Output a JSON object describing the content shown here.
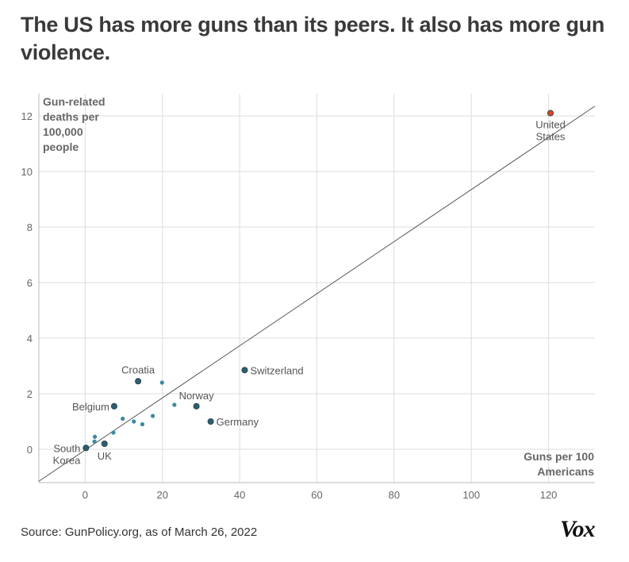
{
  "title": "The US has more guns than its peers. It also has more gun violence.",
  "source": "Source: GunPolicy.org, as of March 26, 2022",
  "logo": "Vox",
  "colors": {
    "point": "#2f5f6f",
    "point_small": "#3a8a9c",
    "highlight": "#d6472a",
    "trend": "#555555",
    "grid": "#dddddd"
  },
  "chart_data": {
    "type": "scatter",
    "title": "The US has more guns than its peers. It also has more gun violence.",
    "ylabel": [
      "Gun-related",
      "deaths per",
      "100,000",
      "people"
    ],
    "xlabel": [
      "Guns per 100",
      "Americans"
    ],
    "xlim": [
      -12,
      132
    ],
    "ylim": [
      -1.2,
      12.8
    ],
    "xticks": [
      0,
      20,
      40,
      60,
      80,
      100,
      120
    ],
    "yticks": [
      0,
      2,
      4,
      6,
      8,
      10,
      12
    ],
    "grid": true,
    "trendline": {
      "x": [
        -12,
        132
      ],
      "y": [
        -1.15,
        12.35
      ]
    },
    "points": [
      {
        "x": 120.5,
        "y": 12.1,
        "label": [
          "United",
          "States"
        ],
        "highlight": true,
        "size": "large"
      },
      {
        "x": 41.3,
        "y": 2.85,
        "label": [
          "Switzerland"
        ],
        "size": "large"
      },
      {
        "x": 13.7,
        "y": 2.45,
        "label": [
          "Croatia"
        ],
        "size": "large"
      },
      {
        "x": 7.5,
        "y": 1.55,
        "label": [
          "Belgium"
        ],
        "size": "large"
      },
      {
        "x": 28.8,
        "y": 1.55,
        "label": [
          "Norway"
        ],
        "size": "large"
      },
      {
        "x": 32.5,
        "y": 1.0,
        "label": [
          "Germany"
        ],
        "size": "large"
      },
      {
        "x": 0.2,
        "y": 0.05,
        "label": [
          "South",
          "Korea"
        ],
        "size": "large"
      },
      {
        "x": 5.0,
        "y": 0.2,
        "label": [
          "UK"
        ],
        "size": "large"
      },
      {
        "x": 19.9,
        "y": 2.4,
        "size": "small"
      },
      {
        "x": 23.1,
        "y": 1.6,
        "size": "small"
      },
      {
        "x": 9.7,
        "y": 1.1,
        "size": "small"
      },
      {
        "x": 17.5,
        "y": 1.2,
        "size": "small"
      },
      {
        "x": 12.6,
        "y": 1.0,
        "size": "small"
      },
      {
        "x": 14.8,
        "y": 0.9,
        "size": "small"
      },
      {
        "x": 7.3,
        "y": 0.6,
        "size": "small"
      },
      {
        "x": 2.5,
        "y": 0.45,
        "size": "small"
      },
      {
        "x": 2.4,
        "y": 0.28,
        "size": "small"
      }
    ]
  }
}
